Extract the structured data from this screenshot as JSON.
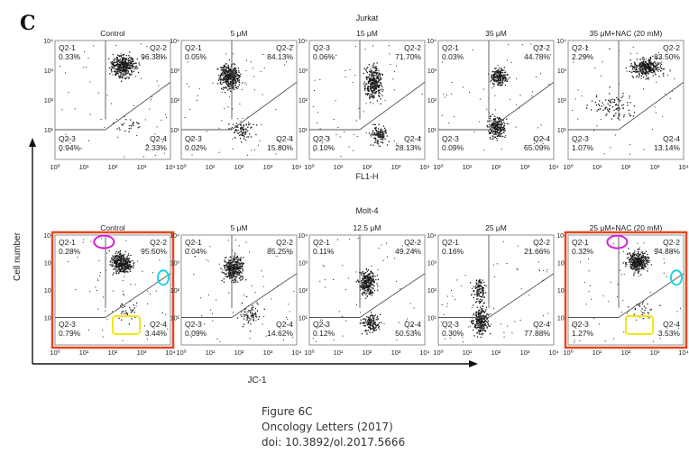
{
  "figure": {
    "panel_letter": "C",
    "y_axis_label": "Cell number",
    "x_axis_label": "JC-1",
    "caption": [
      "Figure 6C",
      "Oncology Letters (2017)",
      "doi: 10.3892/ol.2017.5666"
    ]
  },
  "chart_data": [
    {
      "type": "scatter",
      "title": "Jurkat",
      "xlabel": "FL1-H",
      "ylabel": "",
      "scale": "log",
      "xlim": [
        1,
        10000
      ],
      "ylim": [
        1,
        10000
      ],
      "tick_labels": [
        "10⁰",
        "10¹",
        "10²",
        "10³",
        "10⁴"
      ],
      "panels": [
        {
          "title": "Control",
          "quadrants": {
            "Q2-1": "0.33%",
            "Q2-2": "96.38%",
            "Q2-3": "0.94%",
            "Q2-4": "2.33%"
          }
        },
        {
          "title": "5 μM",
          "quadrants": {
            "Q2-1": "0.05%",
            "Q2-2": "84.13%",
            "Q2-3": "0.02%",
            "Q2-4": "15.80%"
          }
        },
        {
          "title": "15 μM",
          "quadrants": {
            "Q2-3": "0.06%",
            "Q2-2": "71.70%",
            "Q2-3b": "0.10%",
            "Q2-4": "28.13%"
          }
        },
        {
          "title": "35 μM",
          "quadrants": {
            "Q2-1": "0.03%",
            "Q2-2": "44.78%",
            "Q2-3": "0.09%",
            "Q2-4": "55.09%"
          }
        },
        {
          "title": "35 μM+NAC (20 mM)",
          "quadrants": {
            "Q2-1": "2.29%",
            "Q2-2": "83.50%",
            "Q2-3": "1.07%",
            "Q2-4": "13.14%"
          }
        }
      ]
    },
    {
      "type": "scatter",
      "title": "Molt-4",
      "xlabel": "JC-1",
      "ylabel": "Cell number",
      "scale": "log",
      "xlim": [
        1,
        10000
      ],
      "ylim": [
        1,
        10000
      ],
      "tick_labels": [
        "10⁰",
        "10¹",
        "10²",
        "10³",
        "10⁴"
      ],
      "panels": [
        {
          "title": "Control",
          "highlighted": true,
          "quadrants": {
            "Q2-1": "0.28%",
            "Q2-2": "95.50%",
            "Q2-3": "0.79%",
            "Q2-4": "3.44%"
          }
        },
        {
          "title": "5 μM",
          "quadrants": {
            "Q2-1": "0.04%",
            "Q2-2": "85.25%",
            "Q2-3": "0.09%",
            "Q2-4": "14.62%"
          }
        },
        {
          "title": "12.5 μM",
          "quadrants": {
            "Q2-1": "0.11%",
            "Q2-2": "49.24%",
            "Q2-3": "0.12%",
            "Q2-4": "50.53%"
          }
        },
        {
          "title": "25 μM",
          "quadrants": {
            "Q2-1": "0.16%",
            "Q2-2": "21.66%",
            "Q2-3": "0.30%",
            "Q2-4": "77.88%"
          }
        },
        {
          "title": "25 μM+NAC (20 mM)",
          "highlighted": true,
          "quadrants": {
            "Q2-1": "0.32%",
            "Q2-2": "94.88%",
            "Q2-3": "1.27%",
            "Q2-4": "3.53%"
          }
        }
      ]
    }
  ],
  "colors": {
    "highlight_box": "#e8471f",
    "annotation_magenta": "#d21fd2",
    "annotation_cyan": "#1fd2e0",
    "annotation_yellow": "#f2e51a",
    "dots": "#1a1a1a",
    "gate_lines": "#555555"
  }
}
